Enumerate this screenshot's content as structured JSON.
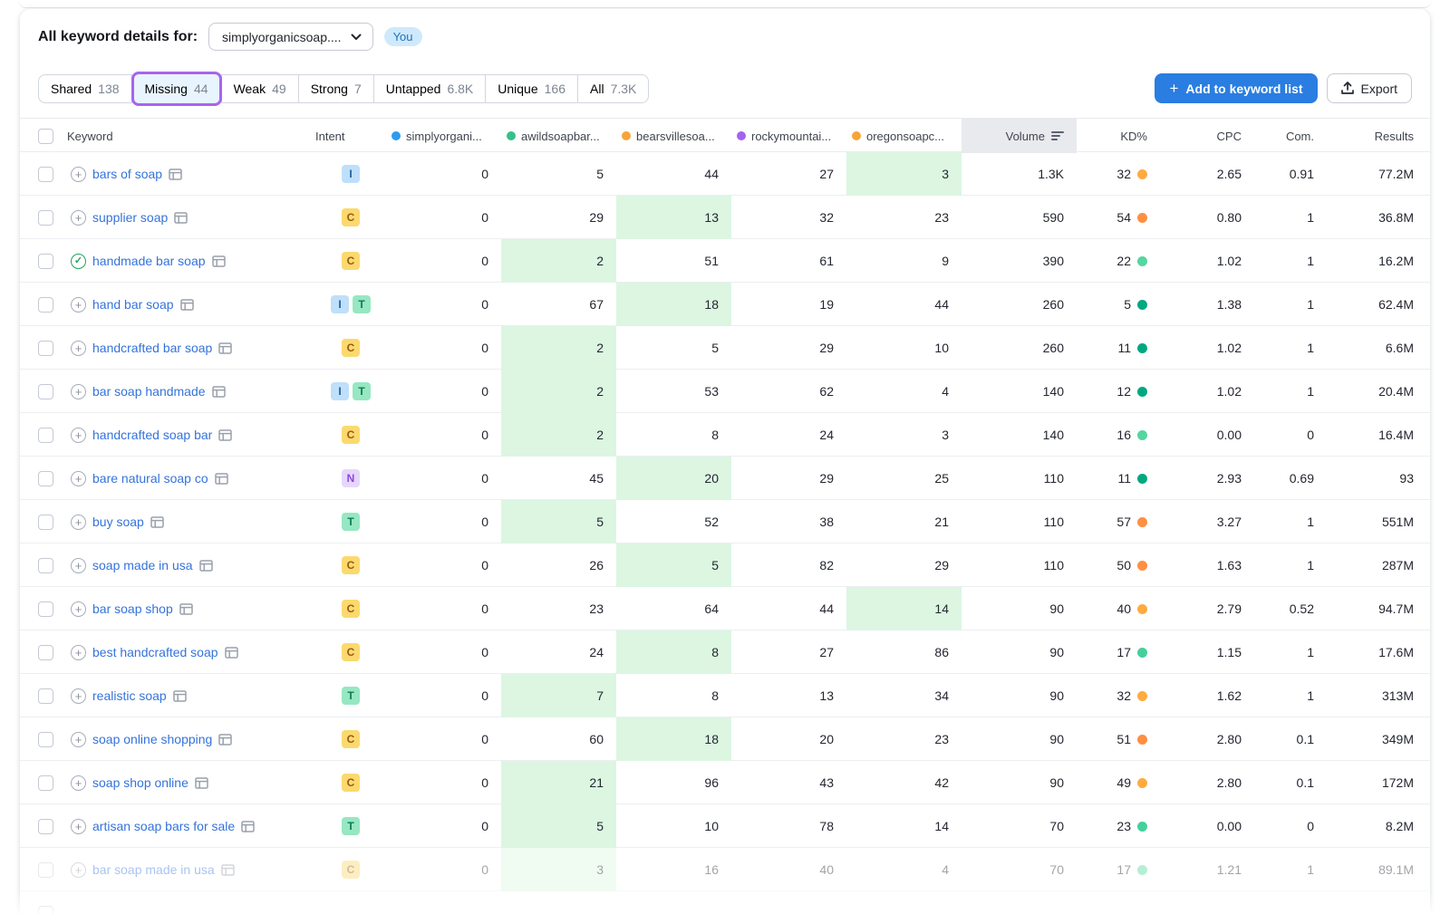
{
  "header": {
    "title": "All keyword details for:",
    "domain_dropdown_value": "simplyorganicsoap....",
    "you_badge": "You"
  },
  "tabs": [
    {
      "label": "Shared",
      "count": "138",
      "active": false
    },
    {
      "label": "Missing",
      "count": "44",
      "active": true
    },
    {
      "label": "Weak",
      "count": "49",
      "active": false
    },
    {
      "label": "Strong",
      "count": "7",
      "active": false
    },
    {
      "label": "Untapped",
      "count": "6.8K",
      "active": false
    },
    {
      "label": "Unique",
      "count": "166",
      "active": false
    },
    {
      "label": "All",
      "count": "7.3K",
      "active": false
    }
  ],
  "actions": {
    "add_to_list_label": "Add to keyword list",
    "export_label": "Export"
  },
  "table": {
    "columns": {
      "keyword": "Keyword",
      "intent": "Intent",
      "volume": "Volume",
      "kd": "KD%",
      "cpc": "CPC",
      "com": "Com.",
      "results": "Results"
    },
    "competitors": [
      {
        "name": "simplyorgani...",
        "color": "#2e9bef"
      },
      {
        "name": "awildsoapbar...",
        "color": "#35c08b"
      },
      {
        "name": "bearsvillesoa...",
        "color": "#f6a43a"
      },
      {
        "name": "rockymountai...",
        "color": "#a661f2"
      },
      {
        "name": "oregonsoapc...",
        "color": "#f6a43a"
      }
    ],
    "intent_styles": {
      "I": {
        "bg": "#bfdffa",
        "fg": "#1f5e9e"
      },
      "C": {
        "bg": "#fbd96e",
        "fg": "#955c12"
      },
      "T": {
        "bg": "#96e7c2",
        "fg": "#0f7a56"
      },
      "N": {
        "bg": "#e6d6fb",
        "fg": "#8b46e0"
      }
    },
    "rows": [
      {
        "keyword": "bars of soap",
        "icon": "plus",
        "intents": [
          "I"
        ],
        "positions": [
          "0",
          "5",
          "44",
          "27",
          "3"
        ],
        "highlight": 4,
        "volume": "1.3K",
        "kd": "32",
        "kd_color": "#ffab40",
        "cpc": "2.65",
        "com": "0.91",
        "results": "77.2M",
        "faded": false
      },
      {
        "keyword": "supplier soap",
        "icon": "plus",
        "intents": [
          "C"
        ],
        "positions": [
          "0",
          "29",
          "13",
          "32",
          "23"
        ],
        "highlight": 2,
        "volume": "590",
        "kd": "54",
        "kd_color": "#ff8f43",
        "cpc": "0.80",
        "com": "1",
        "results": "36.8M",
        "faded": false
      },
      {
        "keyword": "handmade bar soap",
        "icon": "check",
        "intents": [
          "C"
        ],
        "positions": [
          "0",
          "2",
          "51",
          "61",
          "9"
        ],
        "highlight": 1,
        "volume": "390",
        "kd": "22",
        "kd_color": "#55d5a0",
        "cpc": "1.02",
        "com": "1",
        "results": "16.2M",
        "faded": false
      },
      {
        "keyword": "hand bar soap",
        "icon": "plus",
        "intents": [
          "I",
          "T"
        ],
        "positions": [
          "0",
          "67",
          "18",
          "19",
          "44"
        ],
        "highlight": 2,
        "volume": "260",
        "kd": "5",
        "kd_color": "#00a881",
        "cpc": "1.38",
        "com": "1",
        "results": "62.4M",
        "faded": false
      },
      {
        "keyword": "handcrafted bar soap",
        "icon": "plus",
        "intents": [
          "C"
        ],
        "positions": [
          "0",
          "2",
          "5",
          "29",
          "10"
        ],
        "highlight": 1,
        "volume": "260",
        "kd": "11",
        "kd_color": "#00a881",
        "cpc": "1.02",
        "com": "1",
        "results": "6.6M",
        "faded": false
      },
      {
        "keyword": "bar soap handmade",
        "icon": "plus",
        "intents": [
          "I",
          "T"
        ],
        "positions": [
          "0",
          "2",
          "53",
          "62",
          "4"
        ],
        "highlight": 1,
        "volume": "140",
        "kd": "12",
        "kd_color": "#00a881",
        "cpc": "1.02",
        "com": "1",
        "results": "20.4M",
        "faded": false
      },
      {
        "keyword": "handcrafted soap bar",
        "icon": "plus",
        "intents": [
          "C"
        ],
        "positions": [
          "0",
          "2",
          "8",
          "24",
          "3"
        ],
        "highlight": 1,
        "volume": "140",
        "kd": "16",
        "kd_color": "#55d5a0",
        "cpc": "0.00",
        "com": "0",
        "results": "16.4M",
        "faded": false
      },
      {
        "keyword": "bare natural soap co",
        "icon": "plus",
        "intents": [
          "N"
        ],
        "positions": [
          "0",
          "45",
          "20",
          "29",
          "25"
        ],
        "highlight": 2,
        "volume": "110",
        "kd": "11",
        "kd_color": "#00a881",
        "cpc": "2.93",
        "com": "0.69",
        "results": "93",
        "faded": false
      },
      {
        "keyword": "buy soap",
        "icon": "plus",
        "intents": [
          "T"
        ],
        "positions": [
          "0",
          "5",
          "52",
          "38",
          "21"
        ],
        "highlight": 1,
        "volume": "110",
        "kd": "57",
        "kd_color": "#ff8f43",
        "cpc": "3.27",
        "com": "1",
        "results": "551M",
        "faded": false
      },
      {
        "keyword": "soap made in usa",
        "icon": "plus",
        "intents": [
          "C"
        ],
        "positions": [
          "0",
          "26",
          "5",
          "82",
          "29"
        ],
        "highlight": 2,
        "volume": "110",
        "kd": "50",
        "kd_color": "#ff8f43",
        "cpc": "1.63",
        "com": "1",
        "results": "287M",
        "faded": false
      },
      {
        "keyword": "bar soap shop",
        "icon": "plus",
        "intents": [
          "C"
        ],
        "positions": [
          "0",
          "23",
          "64",
          "44",
          "14"
        ],
        "highlight": 4,
        "volume": "90",
        "kd": "40",
        "kd_color": "#ffab40",
        "cpc": "2.79",
        "com": "0.52",
        "results": "94.7M",
        "faded": false
      },
      {
        "keyword": "best handcrafted soap",
        "icon": "plus",
        "intents": [
          "C"
        ],
        "positions": [
          "0",
          "24",
          "8",
          "27",
          "86"
        ],
        "highlight": 2,
        "volume": "90",
        "kd": "17",
        "kd_color": "#44d09a",
        "cpc": "1.15",
        "com": "1",
        "results": "17.6M",
        "faded": false
      },
      {
        "keyword": "realistic soap",
        "icon": "plus",
        "intents": [
          "T"
        ],
        "positions": [
          "0",
          "7",
          "8",
          "13",
          "34"
        ],
        "highlight": 1,
        "volume": "90",
        "kd": "32",
        "kd_color": "#ffab40",
        "cpc": "1.62",
        "com": "1",
        "results": "313M",
        "faded": false
      },
      {
        "keyword": "soap online shopping",
        "icon": "plus",
        "intents": [
          "C"
        ],
        "positions": [
          "0",
          "60",
          "18",
          "20",
          "23"
        ],
        "highlight": 2,
        "volume": "90",
        "kd": "51",
        "kd_color": "#ff8f43",
        "cpc": "2.80",
        "com": "0.1",
        "results": "349M",
        "faded": false
      },
      {
        "keyword": "soap shop online",
        "icon": "plus",
        "intents": [
          "C"
        ],
        "positions": [
          "0",
          "21",
          "96",
          "43",
          "42"
        ],
        "highlight": 1,
        "volume": "90",
        "kd": "49",
        "kd_color": "#ffab40",
        "cpc": "2.80",
        "com": "0.1",
        "results": "172M",
        "faded": false
      },
      {
        "keyword": "artisan soap bars for sale",
        "icon": "plus",
        "intents": [
          "T"
        ],
        "positions": [
          "0",
          "5",
          "10",
          "78",
          "14"
        ],
        "highlight": 1,
        "volume": "70",
        "kd": "23",
        "kd_color": "#44d09a",
        "cpc": "0.00",
        "com": "0",
        "results": "8.2M",
        "faded": false
      },
      {
        "keyword": "bar soap made in usa",
        "icon": "plus",
        "intents": [
          "C"
        ],
        "positions": [
          "0",
          "3",
          "16",
          "40",
          "4"
        ],
        "highlight": 1,
        "volume": "70",
        "kd": "17",
        "kd_color": "#55d5a0",
        "cpc": "1.21",
        "com": "1",
        "results": "89.1M",
        "faded": true
      }
    ]
  }
}
